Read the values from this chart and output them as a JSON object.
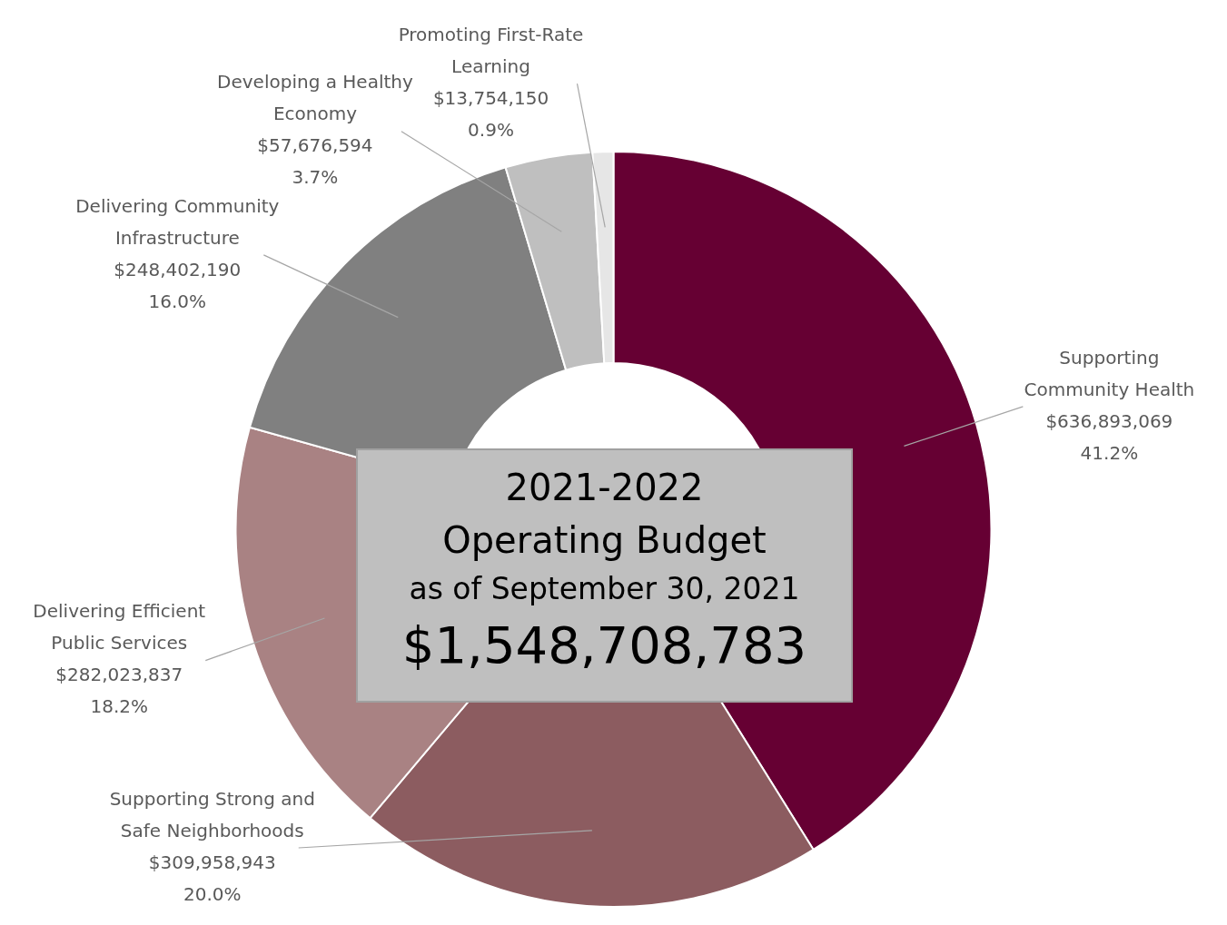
{
  "chart_data": {
    "type": "donut",
    "title": "2021-2022\nOperating Budget",
    "subtitle": "as of September 30, 2021",
    "annotations": [
      "$1,548,708,783"
    ],
    "categories": [
      "Supporting Community Health",
      "Supporting Strong and Safe Neighborhoods",
      "Delivering Efficient Public Services",
      "Delivering Community Infrastructure",
      "Developing a Healthy Economy",
      "Promoting First-Rate Learning"
    ],
    "values": [
      636893069,
      309958943,
      282023837,
      248402190,
      57676594,
      13754150
    ],
    "colors": [
      "#660033",
      "#8c5c60",
      "#a98283",
      "#808080",
      "#bfbfbf",
      "#e6e6e6"
    ],
    "value_labels": [
      "$636,893,069\n41.2%",
      "$309,958,943\n20.0%",
      "$282,023,837\n18.2%",
      "$248,402,190\n16.0%",
      "$57,676,594\n3.7%",
      "$13,754,150\n0.9%"
    ]
  }
}
